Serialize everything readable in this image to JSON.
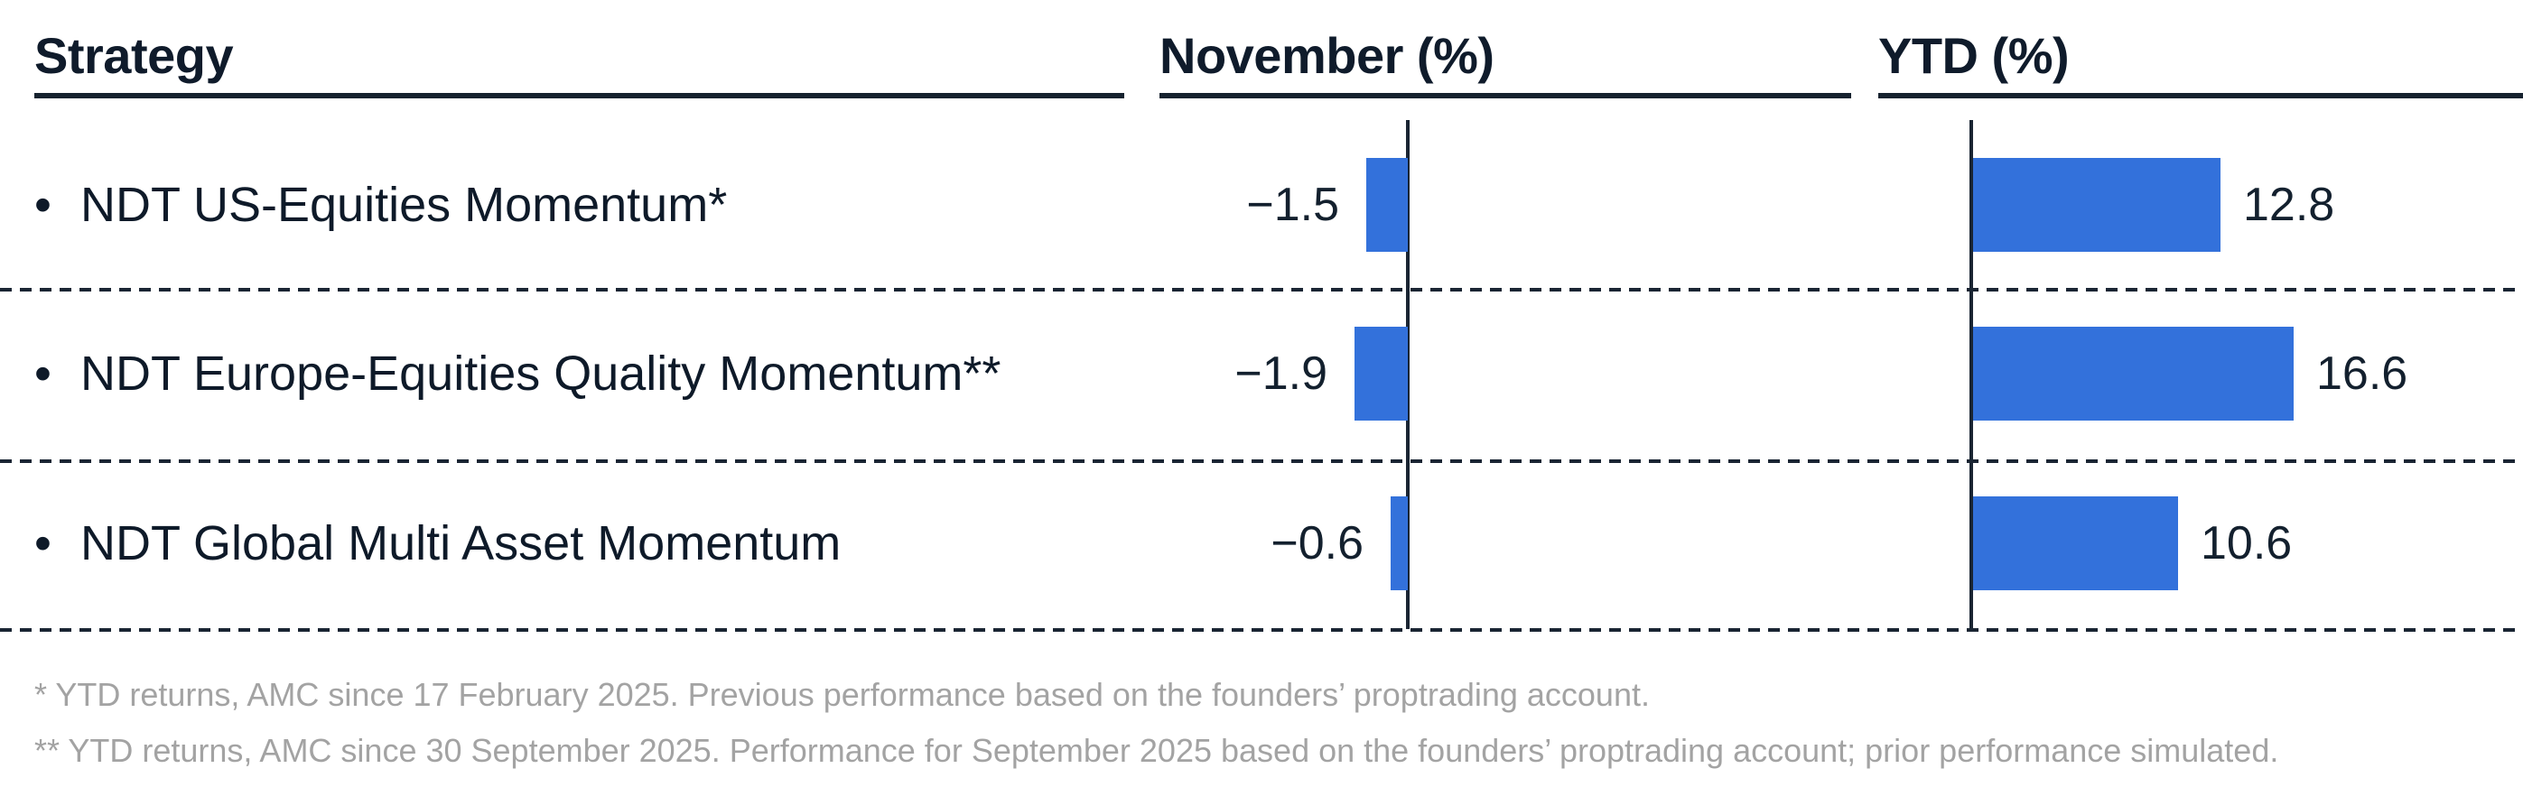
{
  "chart_data": {
    "type": "bar",
    "orientation": "horizontal",
    "grid": "off",
    "legend": "none",
    "columns": [
      "Strategy",
      "November (%)",
      "YTD (%)"
    ],
    "bullet": "•",
    "bar_color": "#3371db",
    "axis_color": "#1a2533",
    "text_color": "#0e1a29",
    "footnote_color": "#a3a3a3",
    "rows": [
      {
        "label": "NDT US-Equities Momentum*",
        "november": -1.5,
        "november_label": "−1.5",
        "ytd": 12.8,
        "ytd_label": "12.8"
      },
      {
        "label": "NDT Europe-Equities Quality Momentum**",
        "november": -1.9,
        "november_label": "−1.9",
        "ytd": 16.6,
        "ytd_label": "16.6"
      },
      {
        "label": "NDT Global Multi Asset Momentum",
        "november": -0.6,
        "november_label": "−0.6",
        "ytd": 10.6,
        "ytd_label": "10.6"
      }
    ]
  },
  "footnotes": [
    "* YTD returns, AMC since 17 February 2025. Previous performance based on the founders’ proptrading account.",
    "** YTD returns, AMC since 30 September 2025. Performance for September 2025 based on the founders’ proptrading account; prior performance simulated."
  ]
}
